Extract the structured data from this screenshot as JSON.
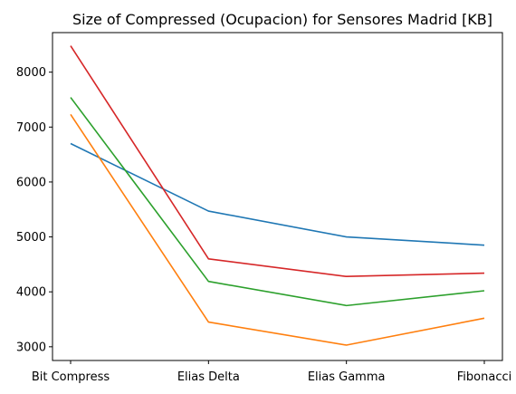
{
  "chart_data": {
    "type": "line",
    "title": "Size of Compressed (Ocupacion) for Sensores Madrid [KB]",
    "xlabel": "",
    "ylabel": "",
    "categories": [
      "Bit Compress",
      "Elias Delta",
      "Elias Gamma",
      "Fibonacci"
    ],
    "y_ticks": [
      3000,
      4000,
      5000,
      6000,
      7000,
      8000
    ],
    "ylim": [
      2750,
      8720
    ],
    "grid": false,
    "legend": "none",
    "series": [
      {
        "color": "#1f77b4",
        "values": [
          6700,
          5470,
          5000,
          4850
        ]
      },
      {
        "color": "#ff7f0e",
        "values": [
          7230,
          3450,
          3030,
          3520
        ]
      },
      {
        "color": "#2ca02c",
        "values": [
          7540,
          4190,
          3750,
          4020
        ]
      },
      {
        "color": "#d62728",
        "values": [
          8480,
          4600,
          4280,
          4340
        ]
      }
    ]
  }
}
